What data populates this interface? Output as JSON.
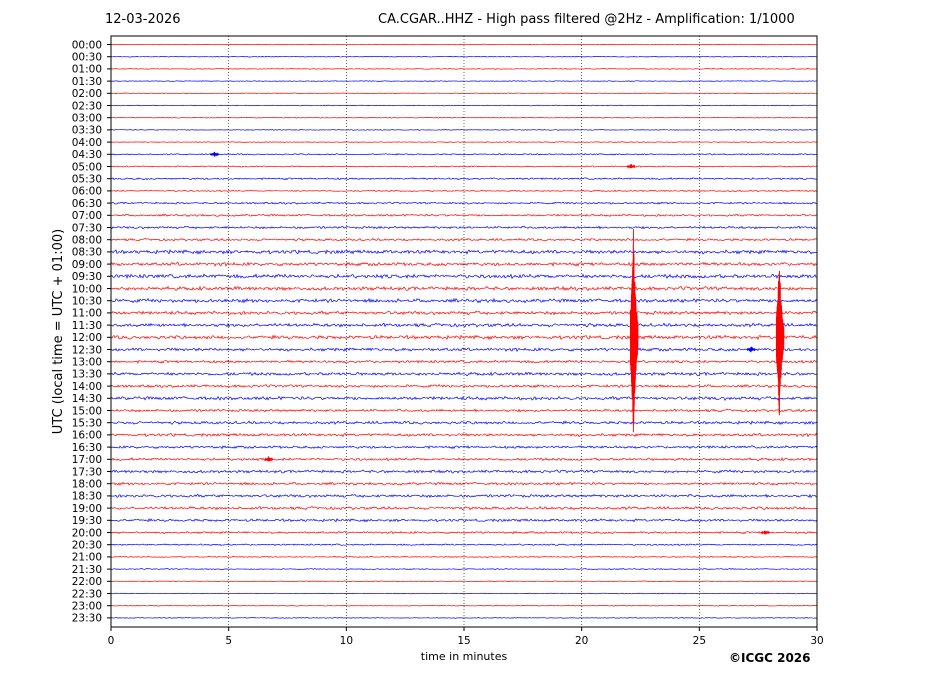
{
  "header": {
    "date": "12-03-2026",
    "title": "CA.CGAR..HHZ - High pass filtered @2Hz - Amplification: 1/1000"
  },
  "footer": {
    "copyright": "©ICGC 2026"
  },
  "chart_data": {
    "type": "line",
    "title": "CA.CGAR..HHZ - High pass filtered @2Hz - Amplification: 1/1000",
    "xlabel": "time in minutes",
    "ylabel": "UTC (local time = UTC + 01:00)",
    "xlim": [
      0,
      30
    ],
    "xticks": [
      0,
      5,
      10,
      15,
      20,
      25,
      30
    ],
    "vertical_grid": [
      5,
      10,
      15,
      20,
      25
    ],
    "rows": [
      "00:00",
      "00:30",
      "01:00",
      "01:30",
      "02:00",
      "02:30",
      "03:00",
      "03:30",
      "04:00",
      "04:30",
      "05:00",
      "05:30",
      "06:00",
      "06:30",
      "07:00",
      "07:30",
      "08:00",
      "08:30",
      "09:00",
      "09:30",
      "10:00",
      "10:30",
      "11:00",
      "11:30",
      "12:00",
      "12:30",
      "13:00",
      "13:30",
      "14:00",
      "14:30",
      "15:00",
      "15:30",
      "16:00",
      "16:30",
      "17:00",
      "17:30",
      "18:00",
      "18:30",
      "19:00",
      "19:30",
      "20:00",
      "20:30",
      "21:00",
      "21:30",
      "22:00",
      "22:30",
      "23:00",
      "23:30"
    ],
    "trace_colors": [
      "#ff0000",
      "#0000ff"
    ],
    "noise_level": [
      0.3,
      0.3,
      0.3,
      0.3,
      0.3,
      0.3,
      0.3,
      0.3,
      0.3,
      0.5,
      0.5,
      0.7,
      0.5,
      0.7,
      0.8,
      0.9,
      0.9,
      1.4,
      1.3,
      1.5,
      1.4,
      1.4,
      1.3,
      1.3,
      1.4,
      1.2,
      1.0,
      1.2,
      1.0,
      1.3,
      1.0,
      1.1,
      1.1,
      1.0,
      1.0,
      1.1,
      1.0,
      1.1,
      1.1,
      1.0,
      0.8,
      0.6,
      0.4,
      0.4,
      0.3,
      0.3,
      0.3,
      0.3
    ],
    "events": [
      {
        "row": "12:00",
        "minute": 22.2,
        "amplitude": 110,
        "color": "#ff0000"
      },
      {
        "row": "12:00",
        "minute": 28.4,
        "amplitude": 85,
        "color": "#ff0000"
      },
      {
        "row": "12:30",
        "minute": 27.2,
        "amplitude": 4,
        "color": "#0000ff"
      },
      {
        "row": "04:30",
        "minute": 4.4,
        "amplitude": 3,
        "color": "#0000ff"
      },
      {
        "row": "05:00",
        "minute": 22.1,
        "amplitude": 3,
        "color": "#ff0000"
      },
      {
        "row": "20:00",
        "minute": 27.8,
        "amplitude": 3,
        "color": "#ff0000"
      },
      {
        "row": "17:00",
        "minute": 6.7,
        "amplitude": 3,
        "color": "#ff0000"
      }
    ]
  }
}
